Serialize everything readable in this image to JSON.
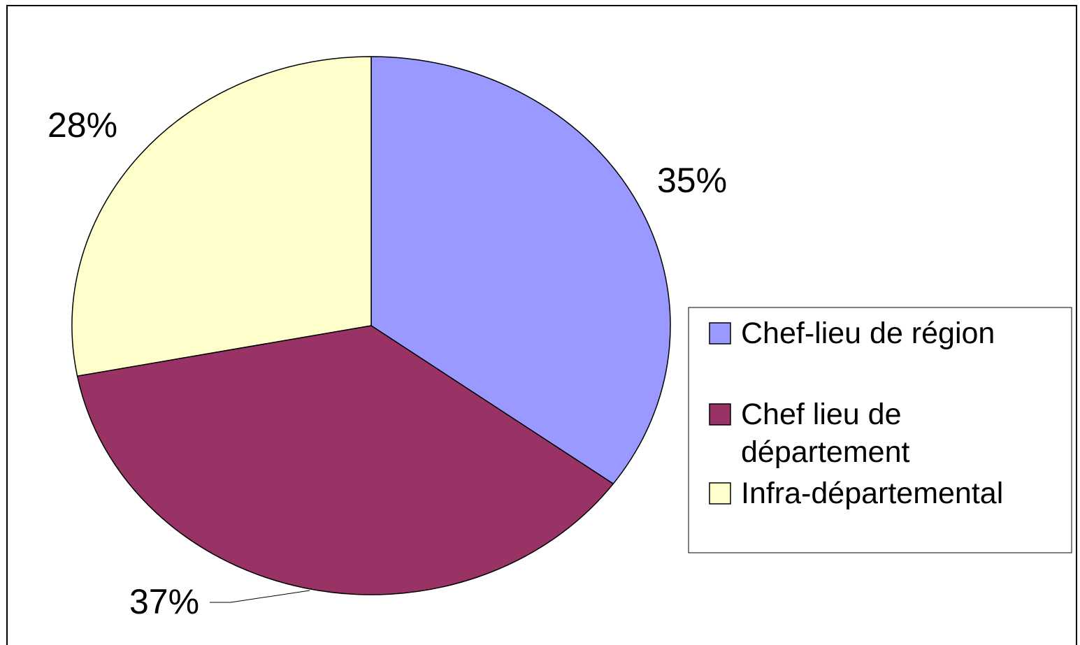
{
  "chart_data": {
    "type": "pie",
    "categories": [
      "Chef-lieu de région",
      "Chef lieu de département",
      "Infra-départemental"
    ],
    "values": [
      35,
      37,
      28
    ],
    "value_labels": [
      "35%",
      "37%",
      "28%"
    ],
    "colors": [
      "#9999ff",
      "#993366",
      "#ffffcc"
    ]
  }
}
